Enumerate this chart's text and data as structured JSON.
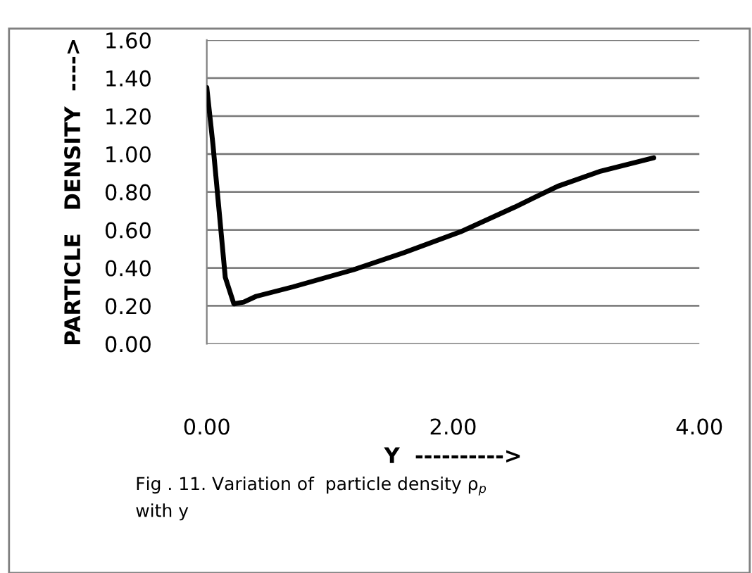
{
  "chart_data": {
    "type": "line",
    "x": [
      0,
      0.05,
      0.1,
      0.15,
      0.22,
      0.3,
      0.4,
      0.7,
      1.19,
      1.6,
      2.06,
      2.5,
      2.85,
      3.2,
      3.63
    ],
    "series": [
      {
        "color": "#000000",
        "values": [
          1.35,
          1.05,
          0.7,
          0.35,
          0.21,
          0.22,
          0.25,
          0.3,
          0.39,
          0.48,
          0.59,
          0.72,
          0.83,
          0.91,
          0.98
        ]
      }
    ],
    "xlim": [
      0,
      4.0
    ],
    "xticks": [
      {
        "value": 0,
        "label": "0.00"
      },
      {
        "value": 2,
        "label": "2.00"
      },
      {
        "value": 4,
        "label": "4.00"
      }
    ],
    "ylim": [
      0,
      1.6
    ],
    "yticks": [
      {
        "value": 0,
        "label": "0.00"
      },
      {
        "value": 0.2,
        "label": "0.20"
      },
      {
        "value": 0.4,
        "label": "0.40"
      },
      {
        "value": 0.6,
        "label": "0.60"
      },
      {
        "value": 0.8,
        "label": "0.80"
      },
      {
        "value": 1.0,
        "label": "1.00"
      },
      {
        "value": 1.2,
        "label": "1.20"
      },
      {
        "value": 1.4,
        "label": "1.40"
      },
      {
        "value": 1.6,
        "label": "1.60"
      }
    ],
    "xlabel": "Y  ---------->",
    "ylabel": "PARTICLE   DENSITY  ---->",
    "annotations": [
      "Fig . 11. Variation of  particle density ρ$_{p}$\nwith y"
    ],
    "grid": "y",
    "marker": "none",
    "line_style": "solid"
  }
}
